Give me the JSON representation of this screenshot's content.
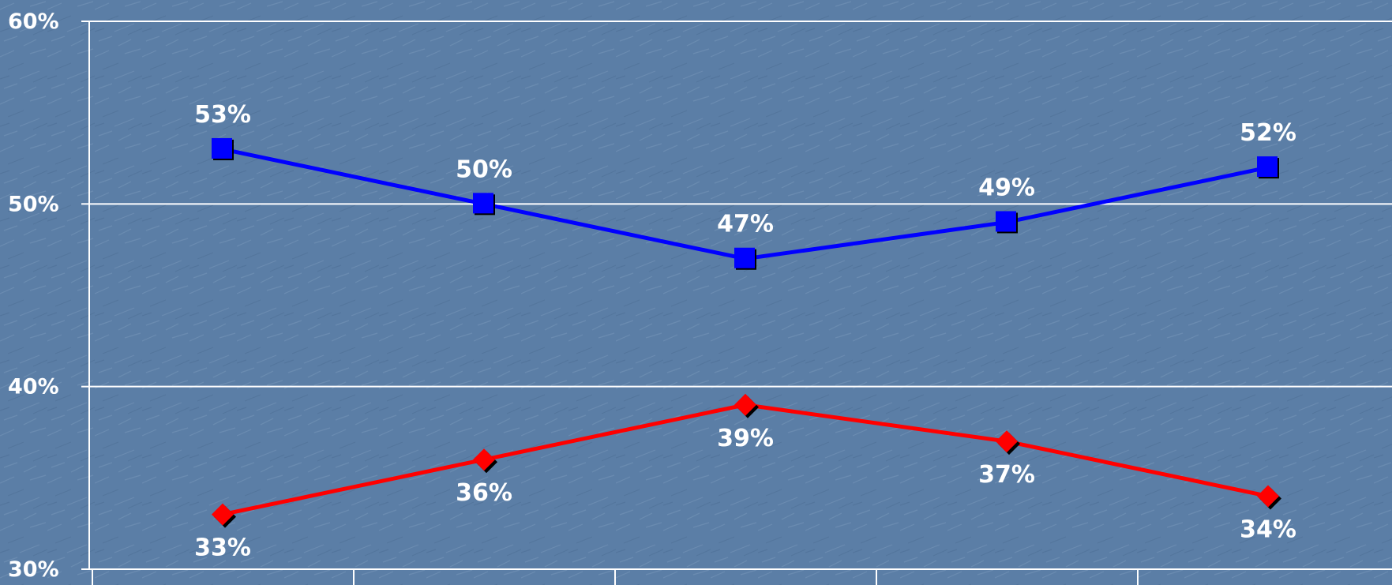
{
  "chart_data": {
    "type": "line",
    "title": "",
    "xlabel": "",
    "ylabel": "",
    "x": [
      1,
      2,
      3,
      4,
      5
    ],
    "ylim": [
      30,
      60
    ],
    "yticks": [
      "30%",
      "40%",
      "50%",
      "60%"
    ],
    "grid": true,
    "series": [
      {
        "marker": "square",
        "color": "#0000ff",
        "values": [
          53,
          50,
          47,
          49,
          52
        ],
        "labels": [
          "53%",
          "50%",
          "47%",
          "49%",
          "52%"
        ],
        "label_position": "above"
      },
      {
        "marker": "diamond",
        "color": "#ff0000",
        "values": [
          33,
          36,
          39,
          37,
          34
        ],
        "labels": [
          "33%",
          "36%",
          "39%",
          "37%",
          "34%"
        ],
        "label_position": "below"
      }
    ]
  }
}
